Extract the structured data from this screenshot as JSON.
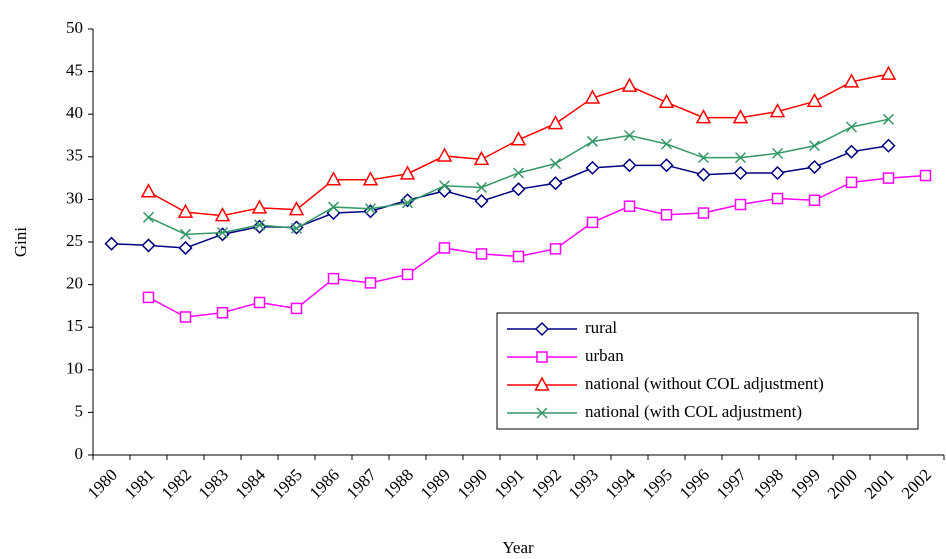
{
  "chart_data": {
    "type": "line",
    "x_label": "Year",
    "y_label": "Gini",
    "categories": [
      "1980",
      "1981",
      "1982",
      "1983",
      "1984",
      "1985",
      "1986",
      "1987",
      "1988",
      "1989",
      "1990",
      "1991",
      "1992",
      "1993",
      "1994",
      "1995",
      "1996",
      "1997",
      "1998",
      "1999",
      "2000",
      "2001",
      "2002"
    ],
    "ylim": [
      0,
      50
    ],
    "yticks": [
      0,
      5,
      10,
      15,
      20,
      25,
      30,
      35,
      40,
      45,
      50
    ],
    "grid": false,
    "legend": "lower right",
    "series": [
      {
        "name": "rural",
        "color": "#000080",
        "marker": "diamond",
        "values": [
          24.8,
          24.6,
          24.3,
          25.9,
          26.8,
          26.7,
          28.4,
          28.6,
          29.9,
          31.0,
          29.8,
          31.2,
          31.9,
          33.7,
          34.0,
          34.0,
          32.9,
          33.1,
          33.1,
          33.8,
          35.6,
          36.3,
          null
        ]
      },
      {
        "name": "urban",
        "color": "#ff00ff",
        "marker": "square",
        "values": [
          null,
          18.5,
          16.2,
          16.7,
          17.9,
          17.2,
          20.7,
          20.2,
          21.2,
          24.3,
          23.6,
          23.3,
          24.2,
          27.3,
          29.2,
          28.2,
          28.4,
          29.4,
          30.1,
          29.9,
          32.0,
          32.5,
          32.8
        ]
      },
      {
        "name": "national (without COL adjustment)",
        "color": "#ff0000",
        "marker": "triangle",
        "values": [
          null,
          30.9,
          28.5,
          28.1,
          29.0,
          28.8,
          32.3,
          32.3,
          33.0,
          35.1,
          34.7,
          37.0,
          38.9,
          41.9,
          43.3,
          41.4,
          39.6,
          39.6,
          40.3,
          41.5,
          43.8,
          44.7,
          null
        ]
      },
      {
        "name": "national (with COL adjustment)",
        "color": "#339966",
        "marker": "x",
        "values": [
          null,
          27.9,
          25.9,
          26.1,
          27.0,
          26.6,
          29.1,
          28.9,
          29.6,
          31.6,
          31.4,
          33.1,
          34.2,
          36.8,
          37.5,
          36.5,
          34.9,
          34.9,
          35.4,
          36.3,
          38.5,
          39.4,
          null
        ]
      }
    ]
  }
}
